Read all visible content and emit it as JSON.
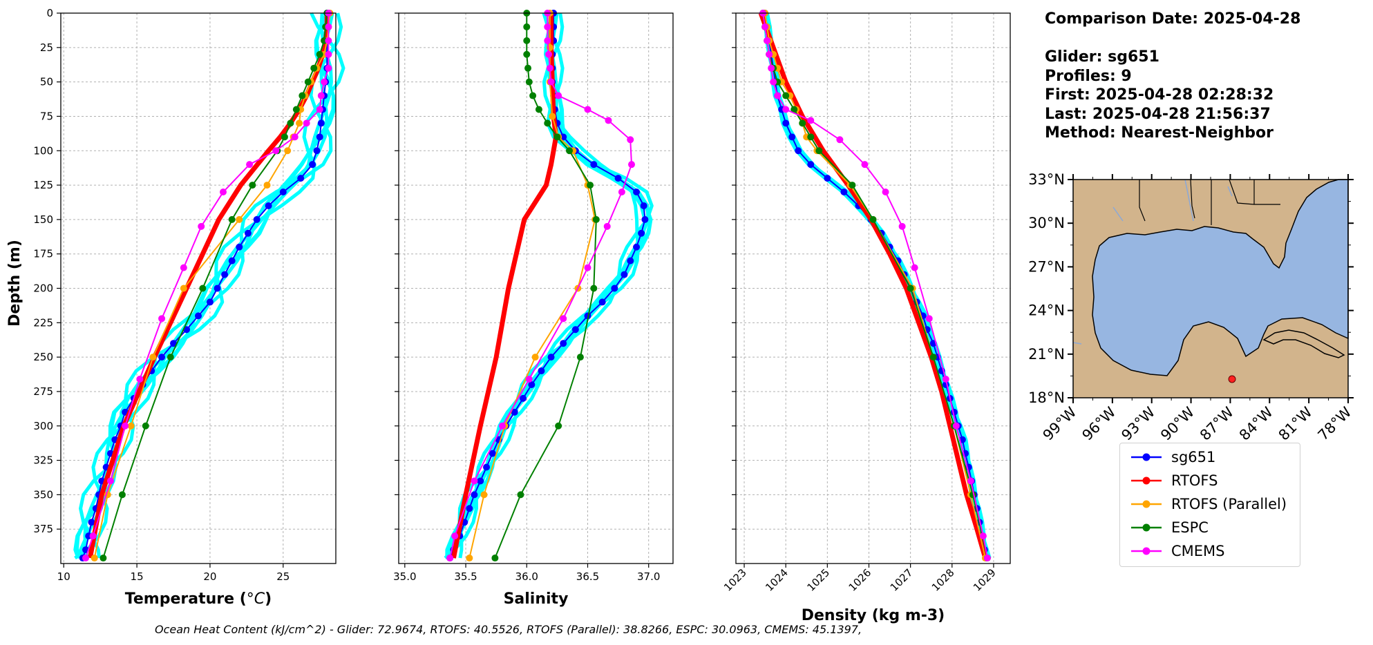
{
  "chart_data": [
    {
      "type": "line",
      "xlabel": "Temperature (°C)",
      "ylabel": "Depth (m)",
      "xlim": [
        9.8,
        28.6
      ],
      "ylim": [
        400,
        0
      ],
      "xticks": [
        10,
        15,
        20,
        25
      ],
      "yticks": [
        0,
        25,
        50,
        75,
        100,
        125,
        150,
        175,
        200,
        225,
        250,
        275,
        300,
        325,
        350,
        375
      ],
      "grid": true,
      "series": [
        {
          "name": "sg651",
          "color": "#0000ff",
          "depth": [
            0,
            10,
            20,
            30,
            40,
            50,
            60,
            70,
            80,
            90,
            100,
            110,
            120,
            130,
            140,
            150,
            160,
            170,
            180,
            190,
            200,
            210,
            220,
            230,
            240,
            250,
            260,
            270,
            280,
            290,
            300,
            310,
            320,
            330,
            340,
            350,
            360,
            370,
            380,
            390,
            396
          ],
          "values": [
            28.0,
            28.0,
            28.0,
            28.0,
            28.0,
            27.9,
            27.8,
            27.7,
            27.6,
            27.5,
            27.3,
            27.0,
            26.2,
            25.0,
            24.0,
            23.2,
            22.6,
            22.0,
            21.5,
            21.0,
            20.5,
            20.0,
            19.2,
            18.4,
            17.5,
            16.7,
            16.0,
            15.4,
            14.8,
            14.2,
            13.9,
            13.5,
            13.2,
            12.9,
            12.6,
            12.4,
            12.2,
            11.9,
            11.7,
            11.5,
            11.3
          ]
        },
        {
          "name": "RTOFS",
          "color": "#ff0000",
          "depth": [
            0,
            10,
            20,
            30,
            40,
            50,
            60,
            70,
            80,
            90,
            100,
            125,
            150,
            200,
            250,
            300,
            350,
            396
          ],
          "values": [
            28.0,
            28.0,
            27.9,
            27.7,
            27.4,
            27.0,
            26.6,
            26.1,
            25.5,
            24.8,
            24.0,
            22.1,
            20.6,
            18.4,
            16.2,
            14.1,
            12.6,
            11.8
          ]
        },
        {
          "name": "RTOFS (Parallel)",
          "color": "#ffa500",
          "depth": [
            0,
            10,
            20,
            30,
            40,
            50,
            60,
            70,
            80,
            90,
            100,
            125,
            150,
            200,
            250,
            300,
            350,
            396
          ],
          "values": [
            28.2,
            28.1,
            28.0,
            27.8,
            27.3,
            26.9,
            26.5,
            26.2,
            26.1,
            25.7,
            25.3,
            23.9,
            22.0,
            18.2,
            16.1,
            14.6,
            13.0,
            12.1
          ]
        },
        {
          "name": "ESPC",
          "color": "#008000",
          "depth": [
            0,
            10,
            20,
            30,
            40,
            50,
            60,
            70,
            80,
            90,
            100,
            125,
            150,
            200,
            250,
            300,
            350,
            396
          ],
          "values": [
            28.0,
            27.9,
            27.8,
            27.5,
            27.1,
            26.7,
            26.3,
            25.9,
            25.5,
            25.1,
            24.6,
            22.9,
            21.5,
            19.5,
            17.3,
            15.6,
            14.0,
            12.7
          ]
        },
        {
          "name": "CMEMS",
          "color": "#ff00ff",
          "depth": [
            0,
            10,
            20,
            30,
            40,
            50,
            60,
            70,
            80,
            90,
            100,
            110,
            130,
            155,
            185,
            222,
            266,
            300,
            340,
            380,
            396
          ],
          "values": [
            28.1,
            28.1,
            28.1,
            28.1,
            28.1,
            27.8,
            27.6,
            27.5,
            26.6,
            25.8,
            24.5,
            22.7,
            20.9,
            19.4,
            18.2,
            16.7,
            15.2,
            14.2,
            13.2,
            12.0,
            11.5
          ]
        }
      ]
    },
    {
      "type": "line",
      "xlabel": "Salinity",
      "xlim": [
        34.95,
        37.2
      ],
      "ylim": [
        400,
        0
      ],
      "xticks": [
        35.0,
        35.5,
        36.0,
        36.5,
        37.0
      ],
      "grid": true,
      "series": [
        {
          "name": "sg651",
          "color": "#0000ff",
          "depth": [
            0,
            10,
            20,
            30,
            40,
            50,
            60,
            70,
            80,
            90,
            100,
            110,
            120,
            130,
            140,
            150,
            160,
            170,
            180,
            190,
            200,
            210,
            220,
            230,
            240,
            250,
            260,
            270,
            280,
            290,
            300,
            310,
            320,
            330,
            340,
            350,
            360,
            370,
            380,
            390,
            396
          ],
          "values": [
            36.22,
            36.22,
            36.22,
            36.21,
            36.21,
            36.21,
            36.22,
            36.23,
            36.25,
            36.3,
            36.4,
            36.55,
            36.75,
            36.9,
            36.96,
            36.97,
            36.94,
            36.9,
            36.85,
            36.8,
            36.72,
            36.62,
            36.5,
            36.4,
            36.3,
            36.2,
            36.12,
            36.04,
            35.97,
            35.9,
            35.83,
            35.77,
            35.72,
            35.67,
            35.62,
            35.57,
            35.53,
            35.49,
            35.45,
            35.4,
            35.37
          ]
        },
        {
          "name": "RTOFS",
          "color": "#ff0000",
          "depth": [
            0,
            25,
            50,
            75,
            90,
            100,
            110,
            125,
            150,
            200,
            250,
            300,
            350,
            396
          ],
          "values": [
            36.2,
            36.2,
            36.21,
            36.22,
            36.24,
            36.22,
            36.2,
            36.16,
            35.98,
            35.85,
            35.75,
            35.62,
            35.5,
            35.4
          ]
        },
        {
          "name": "RTOFS (Parallel)",
          "color": "#ffa500",
          "depth": [
            0,
            25,
            50,
            75,
            90,
            100,
            125,
            150,
            200,
            250,
            300,
            350,
            396
          ],
          "values": [
            36.19,
            36.19,
            36.19,
            36.21,
            36.26,
            36.38,
            36.5,
            36.56,
            36.42,
            36.07,
            35.82,
            35.65,
            35.53
          ]
        },
        {
          "name": "ESPC",
          "color": "#008000",
          "depth": [
            0,
            10,
            20,
            30,
            40,
            50,
            60,
            70,
            80,
            90,
            100,
            125,
            150,
            200,
            250,
            300,
            350,
            396
          ],
          "values": [
            36.0,
            36.0,
            36.0,
            36.0,
            36.01,
            36.02,
            36.05,
            36.1,
            36.17,
            36.25,
            36.35,
            36.52,
            36.57,
            36.55,
            36.44,
            36.26,
            35.95,
            35.74
          ]
        },
        {
          "name": "CMEMS",
          "color": "#ff00ff",
          "depth": [
            0,
            10,
            20,
            30,
            40,
            50,
            60,
            70,
            78,
            92,
            110,
            130,
            155,
            185,
            222,
            266,
            300,
            340,
            380,
            396
          ],
          "values": [
            36.17,
            36.17,
            36.17,
            36.18,
            36.19,
            36.2,
            36.26,
            36.5,
            36.67,
            36.85,
            36.86,
            36.78,
            36.66,
            36.5,
            36.3,
            36.02,
            35.8,
            35.57,
            35.41,
            35.37
          ]
        }
      ]
    },
    {
      "type": "line",
      "xlabel": "Density (kg m-3)",
      "xlim": [
        1022.8,
        1029.4
      ],
      "ylim": [
        400,
        0
      ],
      "xticks": [
        1023,
        1024,
        1025,
        1026,
        1027,
        1028,
        1029
      ],
      "grid": true,
      "series": [
        {
          "name": "sg651",
          "color": "#0000ff",
          "depth": [
            0,
            10,
            20,
            30,
            40,
            50,
            60,
            70,
            80,
            90,
            100,
            110,
            120,
            130,
            140,
            150,
            160,
            170,
            180,
            190,
            200,
            210,
            220,
            230,
            240,
            250,
            260,
            270,
            280,
            290,
            300,
            310,
            320,
            330,
            340,
            350,
            360,
            370,
            380,
            390,
            396
          ],
          "values": [
            1023.5,
            1023.55,
            1023.6,
            1023.65,
            1023.7,
            1023.75,
            1023.8,
            1023.9,
            1024.0,
            1024.15,
            1024.3,
            1024.6,
            1025.0,
            1025.4,
            1025.75,
            1026.05,
            1026.3,
            1026.5,
            1026.7,
            1026.85,
            1027.0,
            1027.15,
            1027.3,
            1027.4,
            1027.55,
            1027.65,
            1027.75,
            1027.85,
            1027.95,
            1028.05,
            1028.15,
            1028.25,
            1028.32,
            1028.4,
            1028.47,
            1028.53,
            1028.6,
            1028.66,
            1028.72,
            1028.78,
            1028.82
          ]
        },
        {
          "name": "RTOFS",
          "color": "#ff0000",
          "depth": [
            0,
            25,
            50,
            75,
            100,
            125,
            150,
            175,
            200,
            225,
            250,
            275,
            300,
            325,
            350,
            375,
            396
          ],
          "values": [
            1023.4,
            1023.7,
            1024.0,
            1024.4,
            1024.9,
            1025.5,
            1026.05,
            1026.5,
            1026.9,
            1027.2,
            1027.5,
            1027.75,
            1027.95,
            1028.15,
            1028.35,
            1028.6,
            1028.8
          ]
        },
        {
          "name": "RTOFS (Parallel)",
          "color": "#ffa500",
          "depth": [
            0,
            10,
            20,
            30,
            40,
            50,
            60,
            70,
            80,
            90,
            100,
            125,
            150,
            200,
            250,
            300,
            350,
            396
          ],
          "values": [
            1023.5,
            1023.55,
            1023.6,
            1023.7,
            1023.8,
            1023.9,
            1024.1,
            1024.25,
            1024.4,
            1024.5,
            1024.75,
            1025.55,
            1026.1,
            1027.05,
            1027.55,
            1028.05,
            1028.45,
            1028.8
          ]
        },
        {
          "name": "ESPC",
          "color": "#008000",
          "depth": [
            0,
            10,
            20,
            30,
            40,
            50,
            60,
            70,
            80,
            90,
            100,
            125,
            150,
            200,
            250,
            300,
            350,
            396
          ],
          "values": [
            1023.45,
            1023.5,
            1023.55,
            1023.6,
            1023.7,
            1023.8,
            1024.0,
            1024.2,
            1024.4,
            1024.6,
            1024.8,
            1025.6,
            1026.1,
            1027.0,
            1027.55,
            1028.05,
            1028.5,
            1028.85
          ]
        },
        {
          "name": "CMEMS",
          "color": "#ff00ff",
          "depth": [
            0,
            10,
            20,
            30,
            40,
            50,
            60,
            70,
            78,
            92,
            110,
            130,
            155,
            185,
            222,
            266,
            300,
            340,
            380,
            396
          ],
          "values": [
            1023.45,
            1023.5,
            1023.55,
            1023.6,
            1023.65,
            1023.7,
            1023.8,
            1024.0,
            1024.6,
            1025.3,
            1025.9,
            1026.4,
            1026.8,
            1027.1,
            1027.45,
            1027.85,
            1028.1,
            1028.45,
            1028.75,
            1028.85
          ]
        }
      ]
    }
  ],
  "info": {
    "comparison_date": "Comparison Date: 2025-04-28",
    "glider": "Glider: sg651",
    "profiles": "Profiles: 9",
    "first": "First: 2025-04-28 02:28:32",
    "last": "Last: 2025-04-28 21:56:37",
    "method": "Method: Nearest-Neighbor"
  },
  "map": {
    "lat_labels": [
      "33°N",
      "30°N",
      "27°N",
      "24°N",
      "21°N",
      "18°N"
    ],
    "lon_labels": [
      "99°W",
      "96°W",
      "93°W",
      "90°W",
      "87°W",
      "84°W",
      "81°W",
      "78°W"
    ],
    "land_color": "#d2b48c",
    "ocean_color": "#97b6e1",
    "glider_location": {
      "lat": 19.4,
      "lon": -86.9
    }
  },
  "legend": [
    {
      "label": "sg651",
      "color": "#0000ff"
    },
    {
      "label": "RTOFS",
      "color": "#ff0000"
    },
    {
      "label": "RTOFS (Parallel)",
      "color": "#ffa500"
    },
    {
      "label": "ESPC",
      "color": "#008000"
    },
    {
      "label": "CMEMS",
      "color": "#ff00ff"
    }
  ],
  "footer": "Ocean Heat Content (kJ/cm^2) - Glider: 72.9674,  RTOFS: 40.5526,  RTOFS (Parallel): 38.8266,  ESPC: 30.0963,  CMEMS: 45.1397,"
}
